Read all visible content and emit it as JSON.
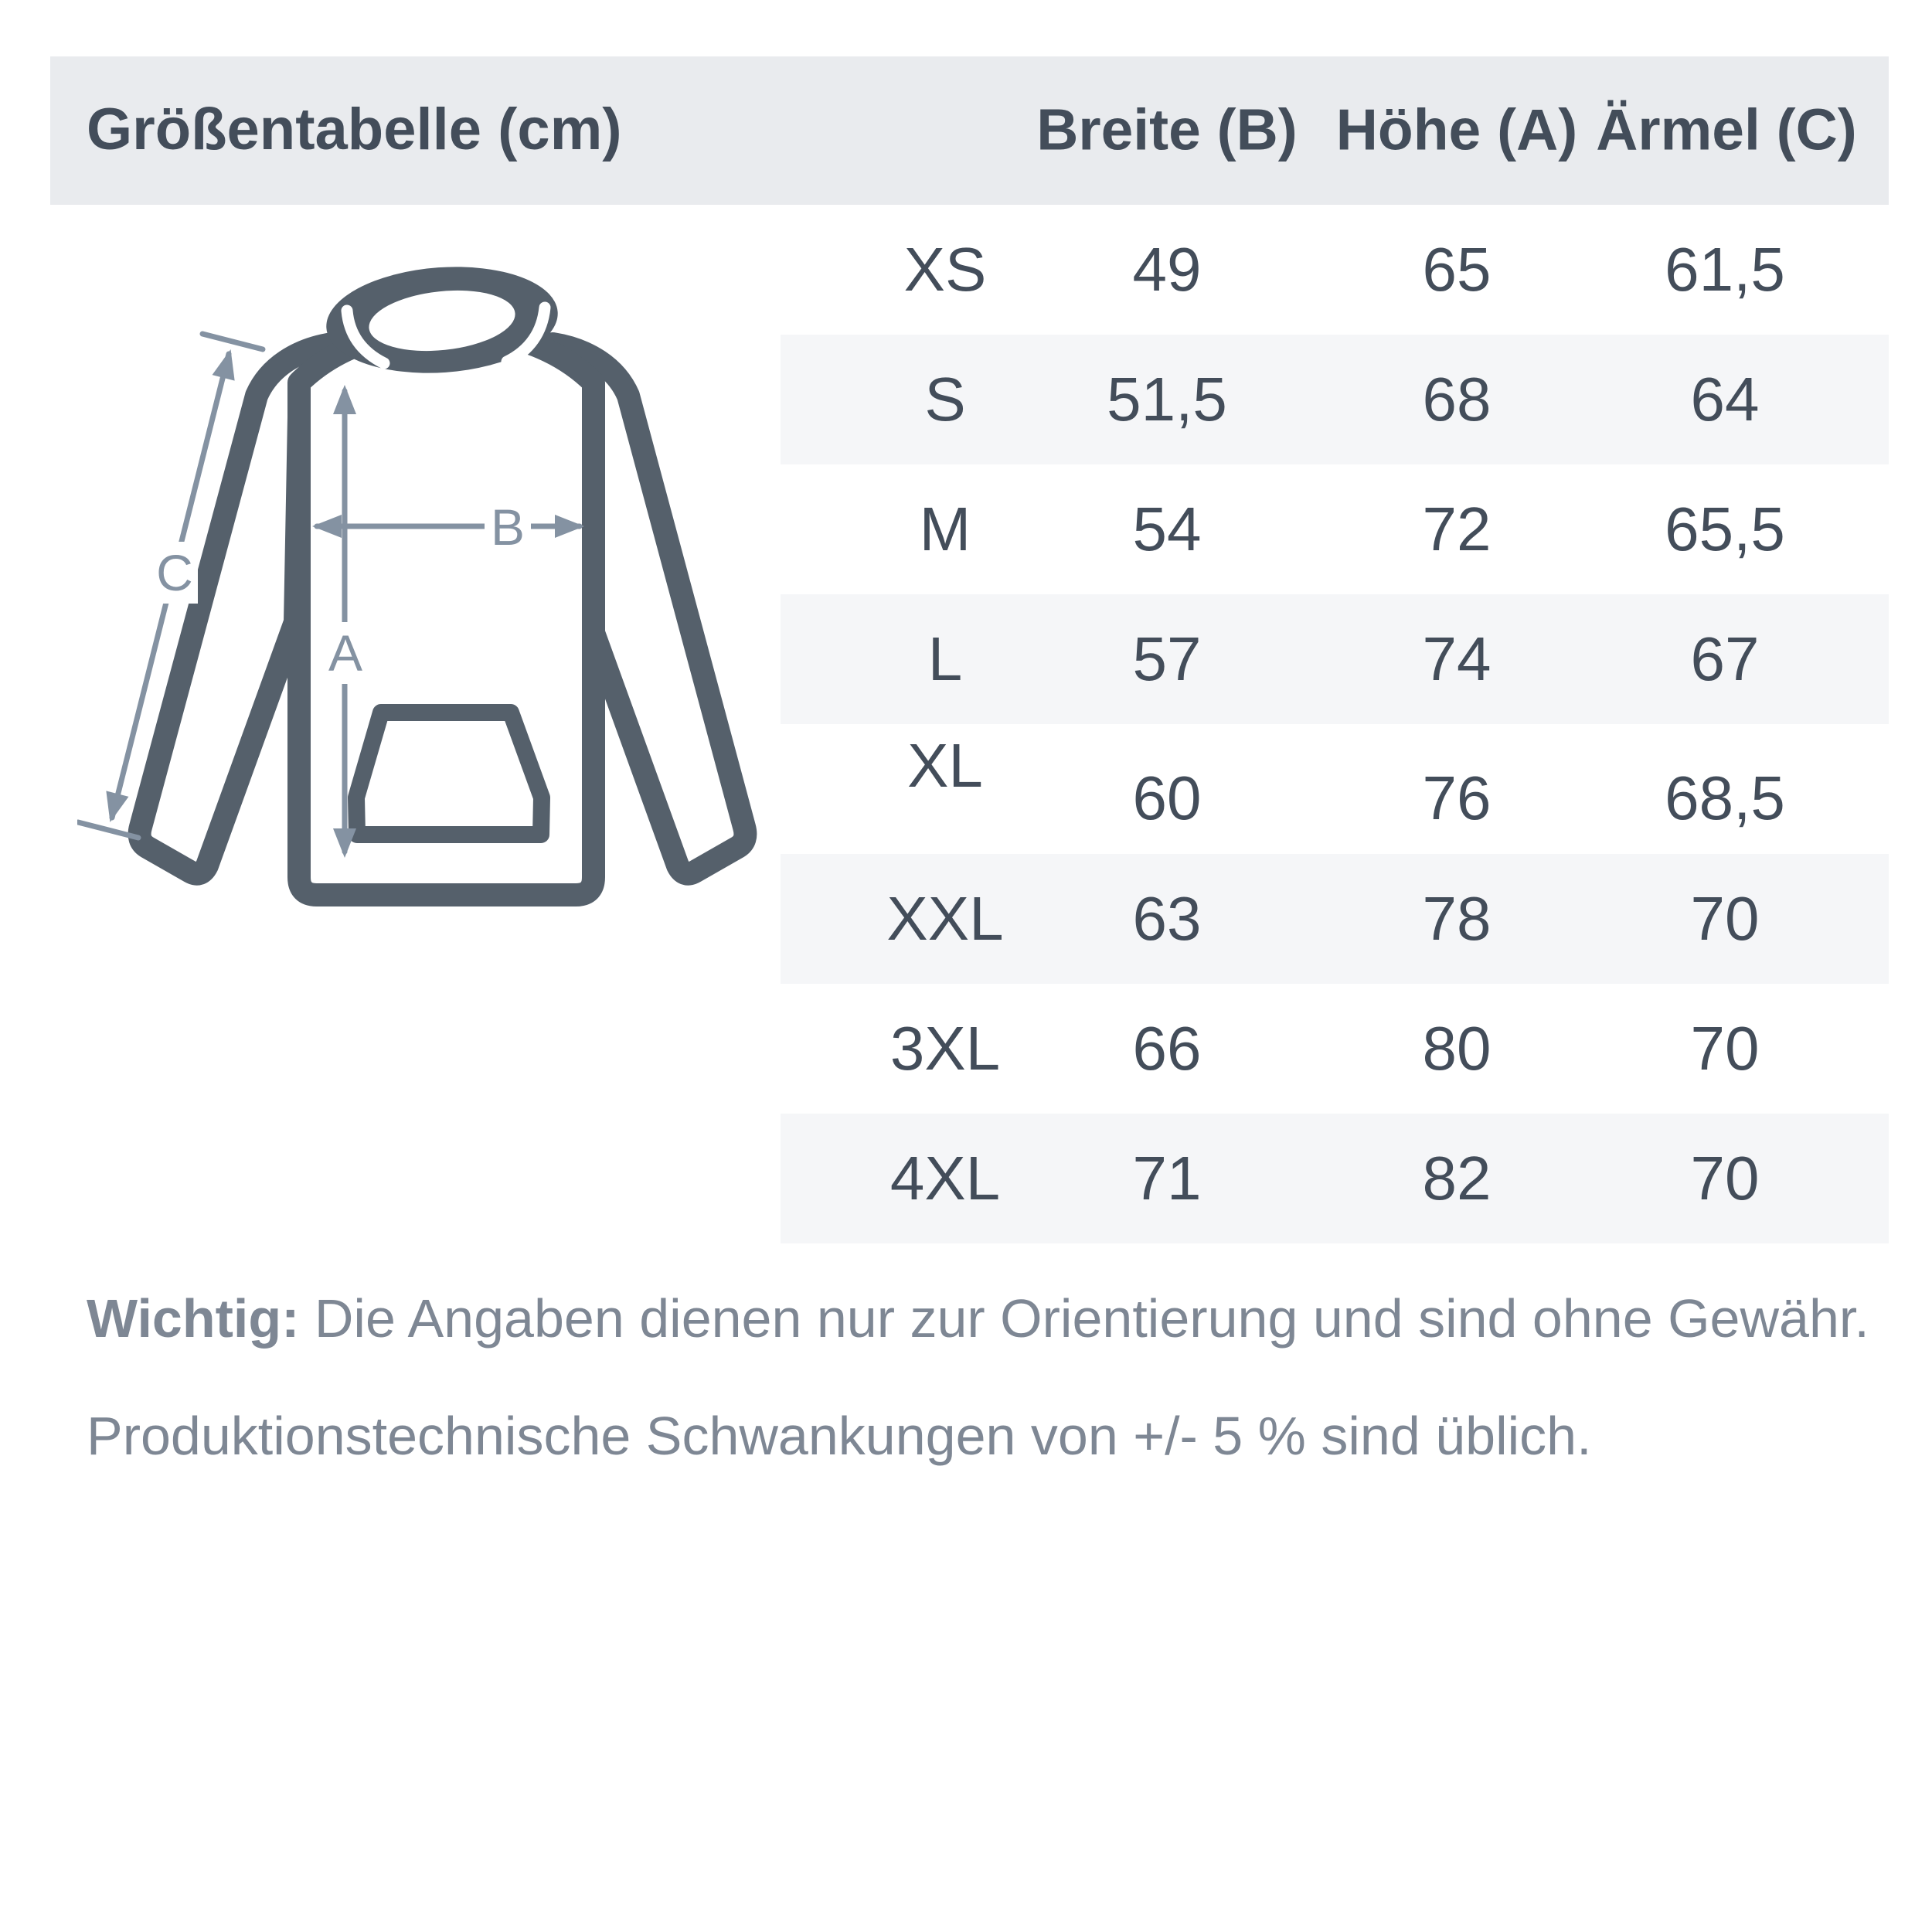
{
  "header": {
    "title": "Größentabelle (cm)",
    "columns": [
      "Breite (B)",
      "Höhe (A)",
      "Ärmel (C)"
    ]
  },
  "table": {
    "rows": [
      {
        "size": "XS",
        "breite": "49",
        "hoehe": "65",
        "aermel": "61,5"
      },
      {
        "size": "S",
        "breite": "51,5",
        "hoehe": "68",
        "aermel": "64"
      },
      {
        "size": "M",
        "breite": "54",
        "hoehe": "72",
        "aermel": "65,5"
      },
      {
        "size": "L",
        "breite": "57",
        "hoehe": "74",
        "aermel": "67"
      },
      {
        "size": "XL",
        "breite": "60",
        "hoehe": "76",
        "aermel": "68,5"
      },
      {
        "size": "XXL",
        "breite": "63",
        "hoehe": "78",
        "aermel": "70"
      },
      {
        "size": "3XL",
        "breite": "66",
        "hoehe": "80",
        "aermel": "70"
      },
      {
        "size": "4XL",
        "breite": "71",
        "hoehe": "82",
        "aermel": "70"
      }
    ]
  },
  "diagram": {
    "labels": {
      "height": "A",
      "width": "B",
      "sleeve": "C"
    }
  },
  "note": {
    "bold": "Wichtig:",
    "line1_rest": " Die Angaben dienen nur zur Orientierung und sind ohne Gewähr.",
    "line2": "Produktionstechnische Schwankungen von +/- 5 % sind üblich."
  },
  "colors": {
    "header_bg": "#e9ebee",
    "stripe_bg": "#f5f6f8",
    "text_dark": "#434d5a",
    "note_gray": "#7e8794",
    "hoodie_outline": "#55606b",
    "arrow_gray": "#8492a2"
  }
}
